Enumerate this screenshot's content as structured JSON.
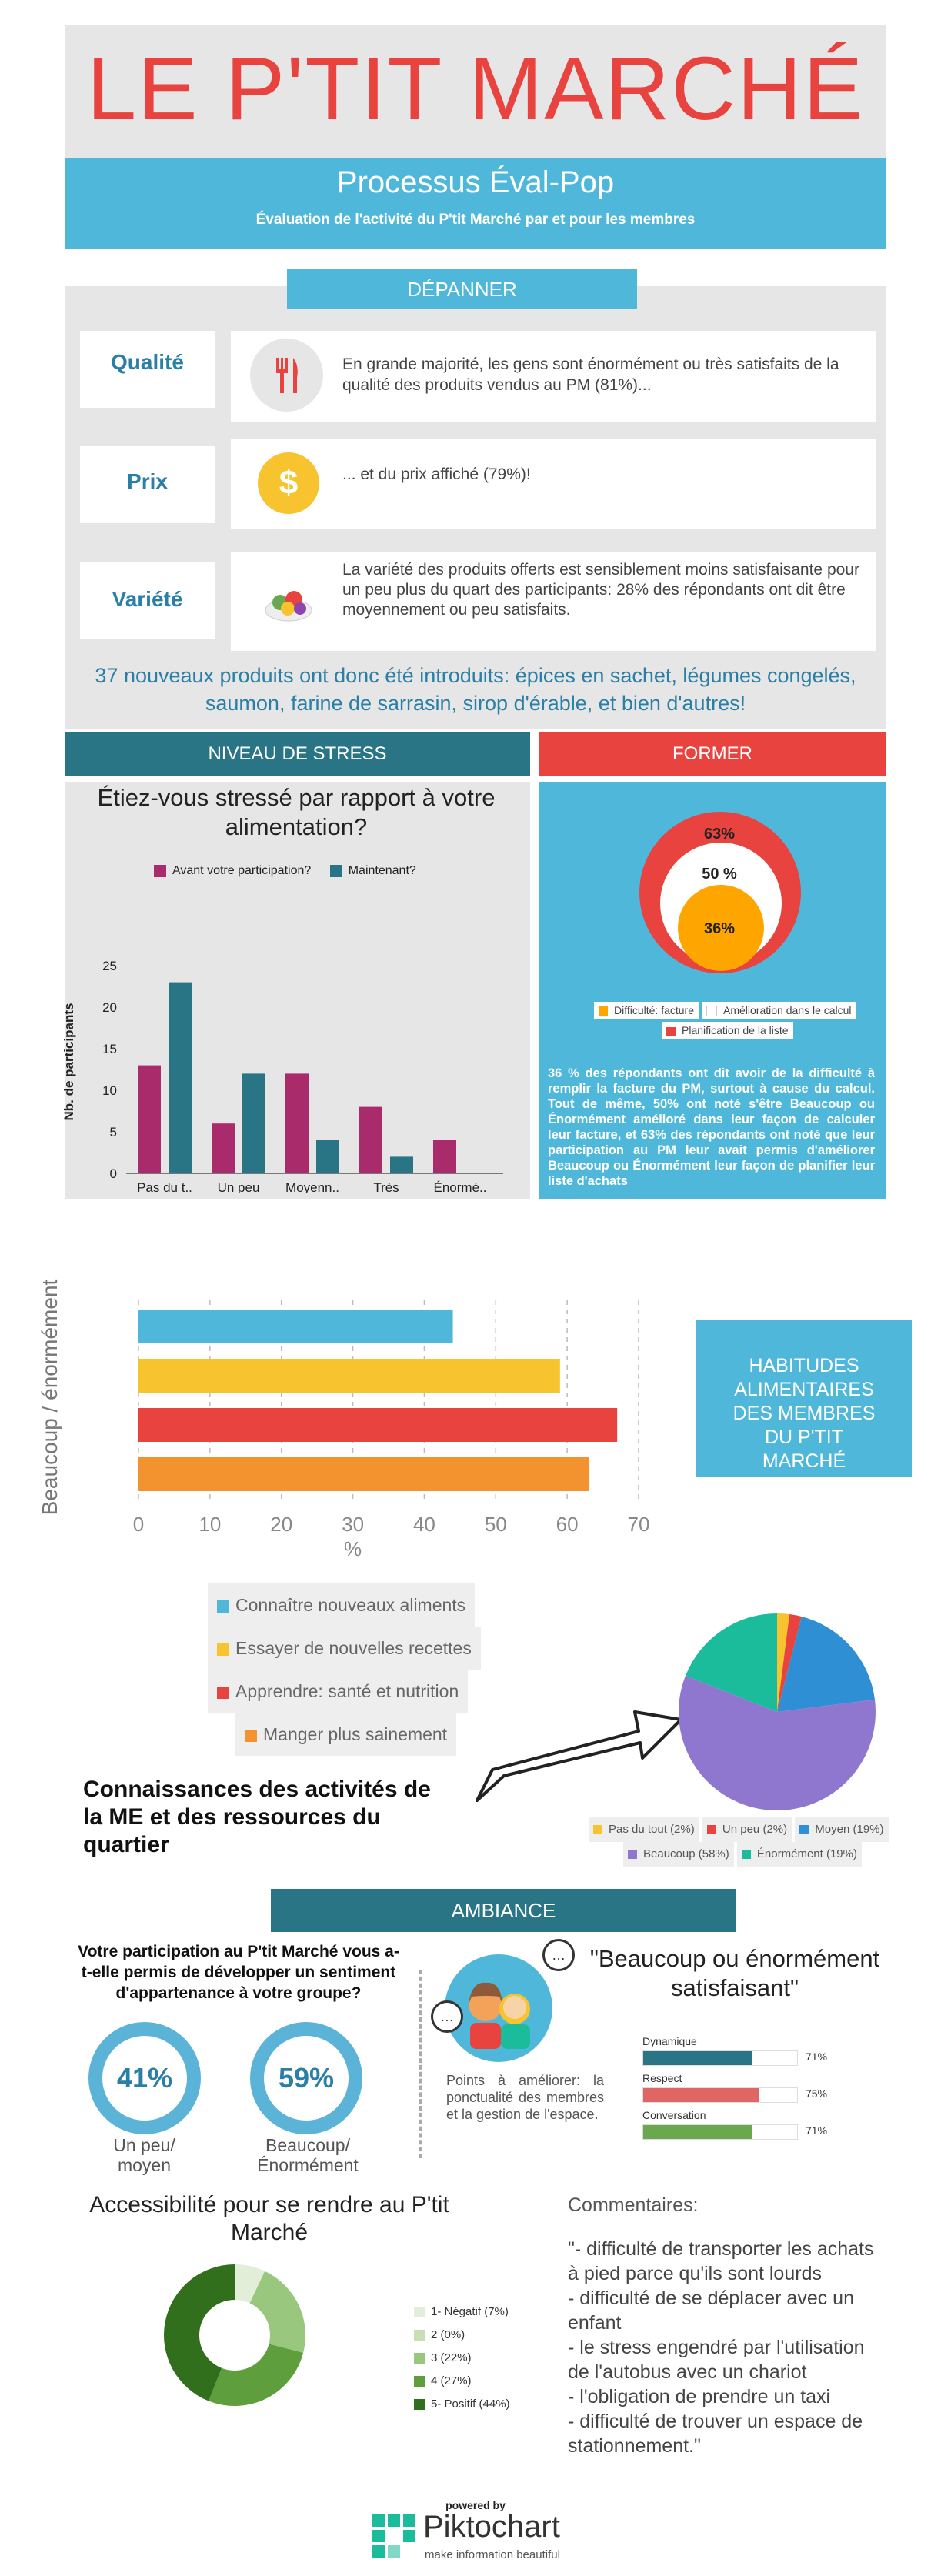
{
  "header": {
    "title": "LE P'TIT MARCHÉ",
    "subtitle": "Processus Éval-Pop",
    "tagline": "Évaluation de l'activité du P'tit Marché par et pour les membres"
  },
  "depanner": {
    "label": "DÉPANNER",
    "rows": [
      {
        "label": "Qualité",
        "text": "En grande majorité, les gens sont énormément ou très satisfaits de la qualité des produits vendus au PM (81%)..."
      },
      {
        "label": "Prix",
        "text": "... et du prix affiché (79%)!"
      },
      {
        "label": "Variété",
        "text": "La variété des produits offerts est sensiblement moins satisfaisante pour un peu plus du quart des participants: 28% des répondants ont dit être moyennement ou peu satisfaits."
      }
    ],
    "highlight": "37 nouveaux produits ont donc été introduits: épices en sachet, légumes congelés, saumon, farine de sarrasin, sirop d'érable, et bien d'autres!"
  },
  "stress": {
    "label": "NIVEAU DE STRESS",
    "question": "Étiez-vous stressé par rapport à votre alimentation?",
    "legend": [
      "Avant votre participation?",
      "Maintenant?"
    ],
    "ylabel": "Nb. de participants",
    "yticks": [
      "0",
      "5",
      "10",
      "15",
      "20",
      "25"
    ],
    "colors": {
      "avant": "#a92b6b",
      "maintenant": "#2a7585"
    }
  },
  "former": {
    "label": "FORMER",
    "pct_outer": "63%",
    "pct_middle": "50 %",
    "pct_inner": "36%",
    "legend": [
      "Difficulté: facture",
      "Amélioration dans le calcul",
      "Planification de la liste"
    ],
    "desc": "36 % des répondants ont dit avoir de la difficulté à remplir la facture du PM, surtout à cause du calcul. Tout de même, 50% ont noté s'être Beaucoup ou Énormément amélioré dans leur façon de calculer leur facture, et 63% des répondants ont noté que leur participation au PM leur avait permis d'améliorer Beaucoup ou Énormément leur façon de planifier leur liste d'achats"
  },
  "habitudes": {
    "box_title": "HABITUDES ALIMENTAIRES DES MEMBRES DU P'TIT MARCHÉ",
    "ylabel": "Beaucoup / énormément",
    "xlabel": "%",
    "xticks": [
      "0",
      "10",
      "20",
      "30",
      "40",
      "50",
      "60",
      "70"
    ],
    "legend": [
      "Connaître nouveaux aliments",
      "Essayer de nouvelles recettes",
      "Apprendre: santé et nutrition",
      "Manger plus sainement"
    ]
  },
  "connaissances": {
    "caption": "Connaissances des activités de la ME et des ressources du quartier",
    "legend": [
      "Pas du tout (2%)",
      "Un peu (2%)",
      "Moyen (19%)",
      "Beaucoup (58%)",
      "Énormément (19%)"
    ]
  },
  "ambiance": {
    "label": "AMBIANCE",
    "question": "Votre participation au P'tit Marché vous a-t-elle permis de développer un sentiment d'appartenance à votre groupe?",
    "stat1": {
      "value": "41%",
      "label": "Un peu/ moyen"
    },
    "stat2": {
      "value": "59%",
      "label": "Beaucoup/ Énormément"
    },
    "points": "Points à améliorer: la ponctualité des membres et la gestion de l'espace.",
    "quote": "\"Beaucoup ou énormément satisfaisant\"",
    "bars": [
      {
        "label": "Dynamique",
        "value": "71%"
      },
      {
        "label": "Respect",
        "value": "75%"
      },
      {
        "label": "Conversation",
        "value": "71%"
      }
    ]
  },
  "access": {
    "title": "Accessibilité pour se rendre au P'tit Marché",
    "legend": [
      "1- Négatif (7%)",
      "2 (0%)",
      "3 (22%)",
      "4 (27%)",
      "5- Positif (44%)"
    ],
    "comments_title": "Commentaires:",
    "comments": "\"- difficulté de transporter les achats à pied parce qu'ils sont lourds\n- difficulté de se déplacer avec un enfant\n- le stress engendré par l'utilisation de l'autobus avec un chariot\n- l'obligation de prendre un taxi\n- difficulté de trouver un espace de stationnement.\""
  },
  "footer": {
    "powered": "powered by",
    "brand": "Piktochart",
    "slogan": "make information beautiful"
  },
  "chart_data": [
    {
      "type": "bar",
      "title": "Étiez-vous stressé par rapport à votre alimentation?",
      "ylabel": "Nb. de participants",
      "categories": [
        "Pas du t..",
        "Un peu",
        "Moyenn..",
        "Très",
        "Énormé.."
      ],
      "series": [
        {
          "name": "Avant votre participation?",
          "values": [
            13,
            6,
            12,
            8,
            4
          ]
        },
        {
          "name": "Maintenant?",
          "values": [
            23,
            12,
            4,
            2,
            0
          ]
        }
      ],
      "ylim": [
        0,
        25
      ]
    },
    {
      "type": "bar",
      "orientation": "horizontal",
      "ylabel": "Beaucoup / énormément",
      "xlabel": "%",
      "categories": [
        "Connaître nouveaux aliments",
        "Essayer de nouvelles recettes",
        "Apprendre: santé et nutrition",
        "Manger plus sainement"
      ],
      "values": [
        44,
        59,
        67,
        63
      ],
      "xlim": [
        0,
        70
      ]
    },
    {
      "type": "pie",
      "labels": [
        "Pas du tout",
        "Un peu",
        "Moyen",
        "Beaucoup",
        "Énormément"
      ],
      "values": [
        2,
        2,
        19,
        58,
        19
      ]
    },
    {
      "type": "pie",
      "labels": [
        "1- Négatif",
        "2",
        "3",
        "4",
        "5- Positif"
      ],
      "values": [
        7,
        0,
        22,
        27,
        44
      ]
    },
    {
      "type": "bar",
      "orientation": "horizontal",
      "categories": [
        "Dynamique",
        "Respect",
        "Conversation"
      ],
      "values": [
        71,
        75,
        71
      ],
      "xlim": [
        0,
        100
      ]
    }
  ]
}
